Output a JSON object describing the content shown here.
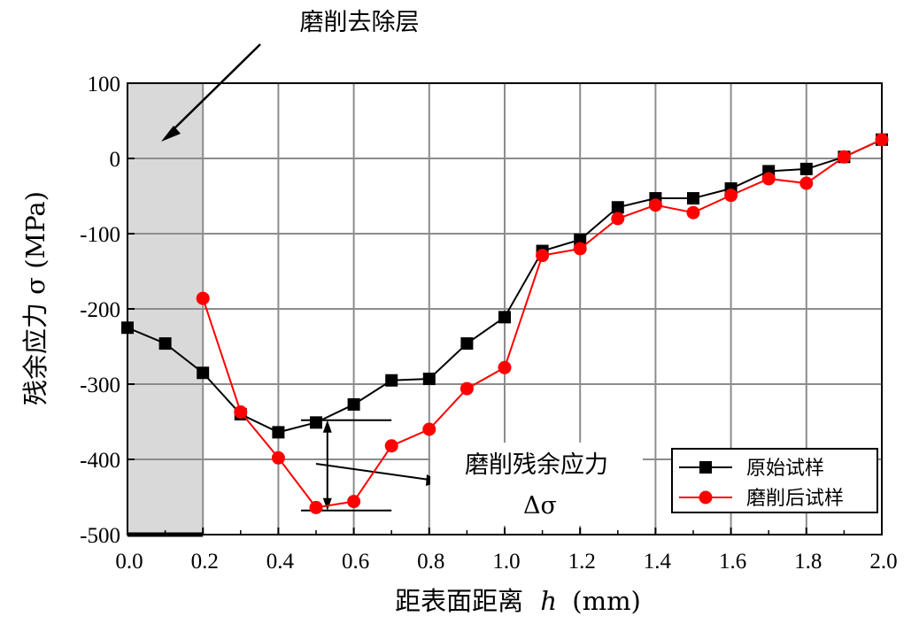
{
  "chart_data": {
    "type": "line",
    "xlabel_cn": "距表面距离",
    "xlabel_var": "h",
    "xlabel_unit": "(mm)",
    "ylabel": "残余应力 σ (MPa)",
    "xlim": [
      0.0,
      2.0
    ],
    "ylim": [
      -500,
      100
    ],
    "x_ticks": [
      "0.0",
      "0.2",
      "0.4",
      "0.6",
      "0.8",
      "1.0",
      "1.2",
      "1.4",
      "1.6",
      "1.8",
      "2.0"
    ],
    "y_ticks": [
      "100",
      "0",
      "-100",
      "-200",
      "-300",
      "-400",
      "-500"
    ],
    "grid": true,
    "legend_position": "bottom-right",
    "series": [
      {
        "name": "原始试样",
        "color": "#000000",
        "marker": "square",
        "x": [
          0.0,
          0.1,
          0.2,
          0.3,
          0.4,
          0.5,
          0.6,
          0.7,
          0.8,
          0.9,
          1.0,
          1.1,
          1.2,
          1.3,
          1.4,
          1.5,
          1.6,
          1.7,
          1.8,
          1.9,
          2.0
        ],
        "y": [
          -225,
          -246,
          -285,
          -340,
          -364,
          -351,
          -327,
          -295,
          -293,
          -246,
          -211,
          -123,
          -108,
          -65,
          -53,
          -53,
          -40,
          -17,
          -14,
          2,
          25
        ]
      },
      {
        "name": "磨削后试样",
        "color": "#ff0000",
        "marker": "circle",
        "x": [
          0.2,
          0.3,
          0.4,
          0.5,
          0.6,
          0.7,
          0.8,
          0.9,
          1.0,
          1.1,
          1.2,
          1.3,
          1.4,
          1.5,
          1.6,
          1.7,
          1.8,
          1.9,
          2.0
        ],
        "y": [
          -186,
          -337,
          -398,
          -464,
          -456,
          -382,
          -360,
          -306,
          -278,
          -129,
          -120,
          -80,
          -62,
          -72,
          -49,
          -27,
          -33,
          2,
          25
        ]
      }
    ],
    "shaded_region": {
      "x_start": 0.0,
      "x_end": 0.2,
      "label": "磨削去除层"
    },
    "annotations": {
      "removal_layer": "磨削去除层",
      "grinding_stress": "磨削残余应力",
      "delta": "Δσ",
      "delta_top_y": -348,
      "delta_bottom_y": -468,
      "delta_x": 0.53
    }
  }
}
